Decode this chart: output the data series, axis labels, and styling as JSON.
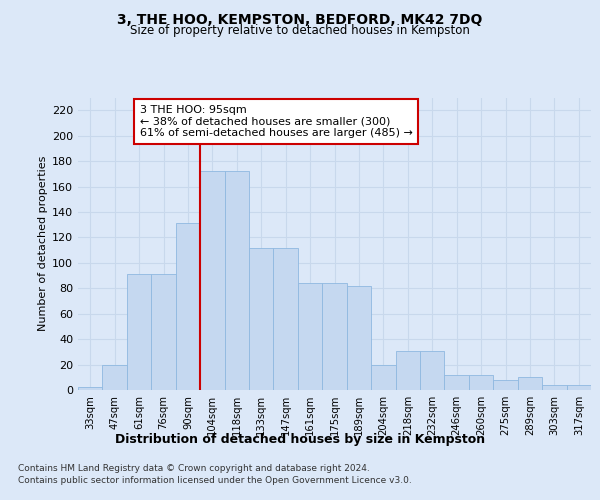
{
  "title": "3, THE HOO, KEMPSTON, BEDFORD, MK42 7DQ",
  "subtitle": "Size of property relative to detached houses in Kempston",
  "xlabel": "Distribution of detached houses by size in Kempston",
  "ylabel": "Number of detached properties",
  "categories": [
    "33sqm",
    "47sqm",
    "61sqm",
    "76sqm",
    "90sqm",
    "104sqm",
    "118sqm",
    "133sqm",
    "147sqm",
    "161sqm",
    "175sqm",
    "189sqm",
    "204sqm",
    "218sqm",
    "232sqm",
    "246sqm",
    "260sqm",
    "275sqm",
    "289sqm",
    "303sqm",
    "317sqm"
  ],
  "bar_heights": [
    2,
    20,
    91,
    91,
    131,
    172,
    172,
    112,
    112,
    84,
    84,
    82,
    20,
    31,
    31,
    12,
    12,
    8,
    10,
    4,
    4
  ],
  "bar_color": "#c5d8f0",
  "bar_edgecolor": "#8fb8e0",
  "grid_color": "#c8d8ec",
  "bg_color": "#dce8f8",
  "fig_bg": "#dce8f8",
  "vline_color": "#cc0000",
  "vline_index": 5,
  "annotation_line1": "3 THE HOO: 95sqm",
  "annotation_line2": "← 38% of detached houses are smaller (300)",
  "annotation_line3": "61% of semi-detached houses are larger (485) →",
  "ylim_max": 230,
  "yticks": [
    0,
    20,
    40,
    60,
    80,
    100,
    120,
    140,
    160,
    180,
    200,
    220
  ],
  "footnote1": "Contains HM Land Registry data © Crown copyright and database right 2024.",
  "footnote2": "Contains public sector information licensed under the Open Government Licence v3.0."
}
